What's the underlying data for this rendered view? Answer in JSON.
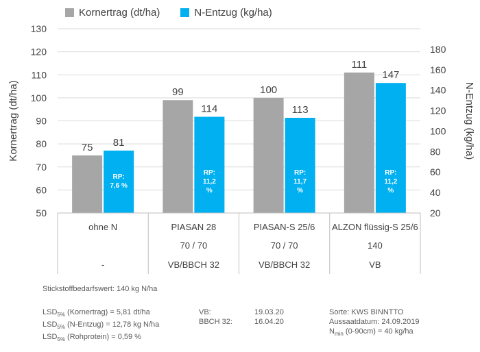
{
  "legend": {
    "s1": "Kornertrag (dt/ha)",
    "s2": "N-Entzug (kg/ha)"
  },
  "colors": {
    "grey": "#a6a6a6",
    "blue": "#00b0f0",
    "grid": "#d9d9d9",
    "text": "#404040"
  },
  "chart_data": {
    "type": "bar",
    "categories": [
      "ohne N",
      "PIASAN 28",
      "PIASAN-S 25/6",
      "ALZON flüssig-S 25/6"
    ],
    "category_line2": [
      "",
      "70 / 70",
      "70 / 70",
      "140"
    ],
    "category_line3": [
      "-",
      "VB/BBCH 32",
      "VB/BBCH 32",
      "VB"
    ],
    "series": [
      {
        "name": "Kornertrag (dt/ha)",
        "axis": "left",
        "values": [
          75,
          99,
          100,
          111
        ],
        "color": "#a6a6a6"
      },
      {
        "name": "N-Entzug (kg/ha)",
        "axis": "right",
        "values": [
          81,
          114,
          113,
          147
        ],
        "color": "#00b0f0"
      }
    ],
    "rp_labels": [
      [
        "RP:",
        "7,6 %"
      ],
      [
        "RP:",
        "11,2",
        "%"
      ],
      [
        "RP:",
        "11,7",
        "%"
      ],
      [
        "RP:",
        "11,2",
        "%"
      ]
    ],
    "ylabel": "Kornertrag (dt/ha)",
    "ylabel_right": "N-Entzug (kg/ha)",
    "ylim": [
      50,
      130
    ],
    "yticks": [
      50,
      60,
      70,
      80,
      90,
      100,
      110,
      120,
      130
    ],
    "ylim_right": [
      20,
      200
    ],
    "yticks_right": [
      20,
      40,
      60,
      80,
      100,
      120,
      140,
      160,
      180
    ],
    "grid": true
  },
  "notes": {
    "stickstoff": "Stickstoffbedarfswert: 140 kg N/ha",
    "lsd_sub": "5%",
    "lsd1_rest": " (Kornertrag) =  5,81 dt/ha",
    "lsd2_rest": " (N-Entzug)  =  12,78 kg N/ha",
    "lsd3_rest": " (Rohprotein) = 0,59 %",
    "vb_label": "VB:",
    "vb_date": "19.03.20",
    "bbch_label": "BBCH 32:",
    "bbch_date": "16.04.20",
    "sorte": "Sorte: KWS BINNTTO",
    "aussaat": "Aussaatdatum: 24.09.2019",
    "nmin_sub": "min",
    "nmin_rest": " (0-90cm) = 40 kg/ha"
  }
}
